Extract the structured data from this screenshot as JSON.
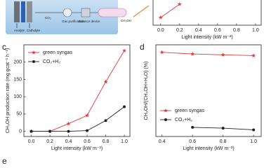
{
  "diagram": {
    "labels": [
      "Anolyte",
      "Catholyte",
      "CO₂",
      "Gas purification",
      "Balance device",
      "CH₃OH"
    ]
  },
  "chart_data": [
    {
      "type": "line",
      "x_label": "Light intensity (kW m⁻²)",
      "xlim": [
        -0.08,
        1.06
      ],
      "ylim": [
        0,
        38
      ],
      "xticks": [
        {
          "value": 0,
          "label": "0.0"
        },
        {
          "value": 0.2,
          "label": "0.2"
        },
        {
          "value": 0.4,
          "label": "0.4"
        },
        {
          "value": 0.6,
          "label": "0.6"
        },
        {
          "value": 0.8,
          "label": "0.8"
        },
        {
          "value": 1,
          "label": "1.0"
        }
      ],
      "x": [
        0,
        0.2
      ],
      "series": [
        {
          "color": "#e03a3a",
          "marker": "star",
          "values": [
            11,
            30
          ]
        }
      ]
    },
    {
      "type": "line",
      "label": "c",
      "x_label": "Light intensity (kW m⁻²)",
      "y_label": "CH₃OH production rate (mg gcat⁻¹ h⁻¹)",
      "xlim": [
        -0.08,
        1.06
      ],
      "ylim": [
        -15,
        250
      ],
      "xticks": [
        {
          "value": 0,
          "label": "0.0"
        },
        {
          "value": 0.2,
          "label": "0.2"
        },
        {
          "value": 0.4,
          "label": "0.4"
        },
        {
          "value": 0.6,
          "label": "0.6"
        },
        {
          "value": 0.8,
          "label": "0.8"
        },
        {
          "value": 1,
          "label": "1.0"
        }
      ],
      "yticks": [
        0,
        50,
        100,
        150,
        200
      ],
      "legend": "upper-left",
      "x": [
        0,
        0.2,
        0.4,
        0.6,
        0.8,
        1.0
      ],
      "series": [
        {
          "name": "green syngas",
          "color": "#e03a3a",
          "marker": "star",
          "values": [
            0,
            0,
            22,
            46,
            143,
            233
          ]
        },
        {
          "name": "CO₂+H₂",
          "color": "#222222",
          "marker": "circle",
          "values": [
            0,
            0,
            0,
            2,
            31,
            71
          ]
        }
      ]
    },
    {
      "type": "line",
      "label": "d",
      "x_label": "Light intensity (kW m⁻²)",
      "y_label": "CH₃OH/(CH₃OH+H₂O) (%)",
      "xlim": [
        0.36,
        1.05
      ],
      "ylim": [
        -2,
        108
      ],
      "xticks": [
        0.4,
        0.6,
        0.8,
        {
          "value": 1,
          "label": "1.0"
        }
      ],
      "legend": "lower-left",
      "x": [
        0.4,
        0.6,
        0.8,
        1.0
      ],
      "series": [
        {
          "name": "green syngas",
          "color": "#e03a3a",
          "marker": "star",
          "values": [
            99,
            97,
            96,
            95
          ]
        },
        {
          "name": "CO₂+H₂",
          "color": "#222222",
          "marker": "circle",
          "values": [
            null,
            9,
            8,
            6
          ]
        }
      ]
    }
  ],
  "panel_e": {
    "label": "e"
  }
}
